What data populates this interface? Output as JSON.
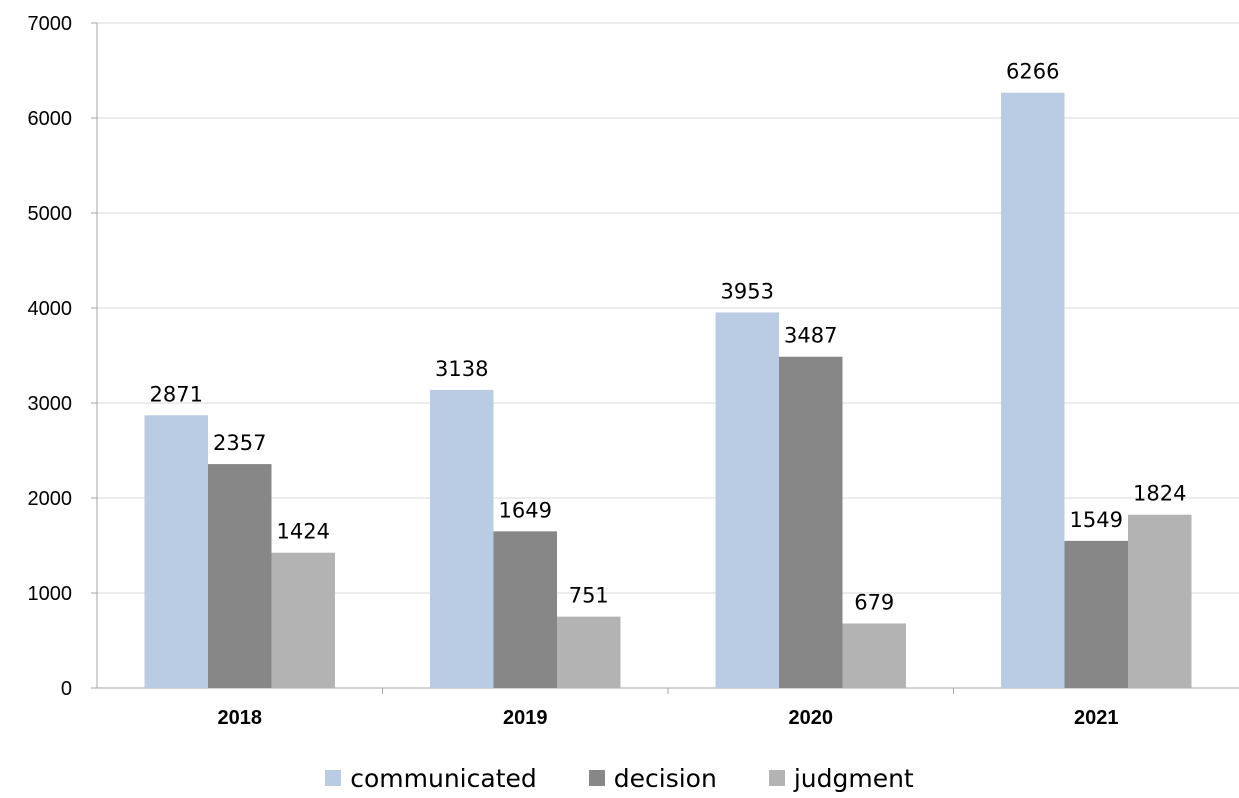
{
  "chart_data": {
    "type": "bar",
    "categories": [
      "2018",
      "2019",
      "2020",
      "2021"
    ],
    "series": [
      {
        "name": "communicated",
        "values": [
          2871,
          3138,
          3953,
          6266
        ],
        "color": "#b9cce4"
      },
      {
        "name": "decision",
        "values": [
          2357,
          1649,
          3487,
          1549
        ],
        "color": "#878787"
      },
      {
        "name": "judgment",
        "values": [
          1424,
          751,
          679,
          1824
        ],
        "color": "#b3b3b3"
      }
    ],
    "ylim": [
      0,
      7000
    ],
    "yticks": [
      0,
      1000,
      2000,
      3000,
      4000,
      5000,
      6000,
      7000
    ],
    "grid": true,
    "legend_position": "bottom",
    "data_labels": true
  }
}
